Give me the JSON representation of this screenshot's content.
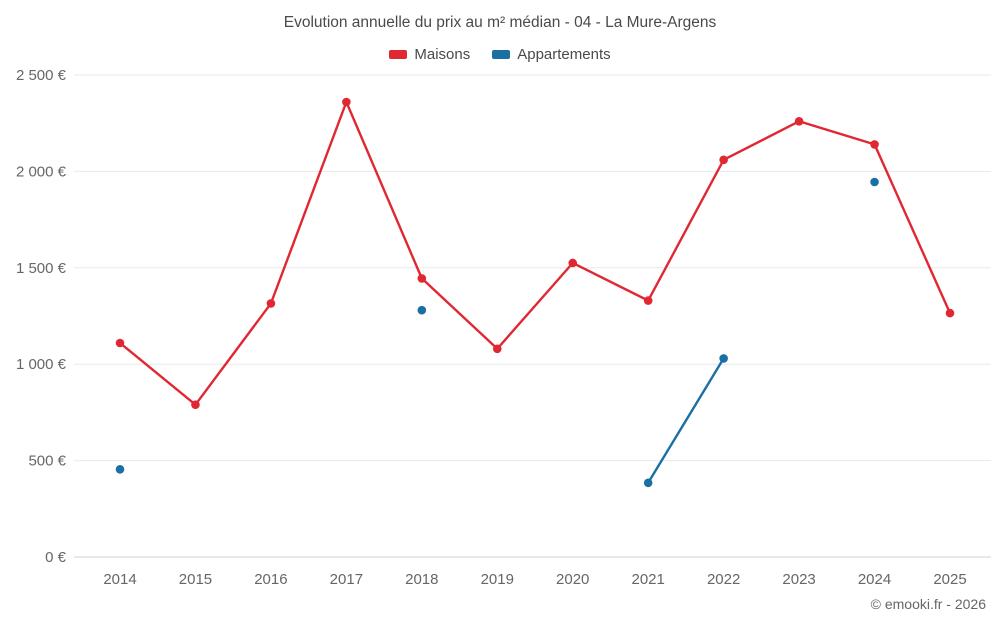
{
  "title": "Evolution annuelle du prix au m² médian - 04 - La Mure-Argens",
  "copyright": "© emooki.fr - 2026",
  "colors": {
    "maisons": "#e02833",
    "appartements": "#1a6fa3",
    "grid": "#e9e9ea",
    "axis": "#cfd0d2",
    "tick_text": "#666666",
    "title_text": "#4a4a4a"
  },
  "chart_data": {
    "type": "line",
    "title": "Evolution annuelle du prix au m² médian - 04 - La Mure-Argens",
    "categories": [
      "2014",
      "2015",
      "2016",
      "2017",
      "2018",
      "2019",
      "2020",
      "2021",
      "2022",
      "2023",
      "2024",
      "2025"
    ],
    "series": [
      {
        "name": "Maisons",
        "color": "#e02833",
        "values": [
          1110,
          790,
          1315,
          2360,
          1445,
          1080,
          1525,
          1330,
          2060,
          2260,
          2140,
          1265
        ]
      },
      {
        "name": "Appartements",
        "color": "#1a6fa3",
        "values": [
          455,
          null,
          null,
          null,
          1280,
          null,
          null,
          385,
          1030,
          null,
          1945,
          null
        ]
      }
    ],
    "xlabel": "",
    "ylabel": "",
    "ylim": [
      0,
      2500
    ],
    "yticks": [
      0,
      500,
      1000,
      1500,
      2000,
      2500
    ],
    "ytick_labels": [
      "0 €",
      "500 €",
      "1 000 €",
      "1 500 €",
      "2 000 €",
      "2 500 €"
    ],
    "grid": "horizontal",
    "legend_position": "top",
    "marker": "circle"
  }
}
